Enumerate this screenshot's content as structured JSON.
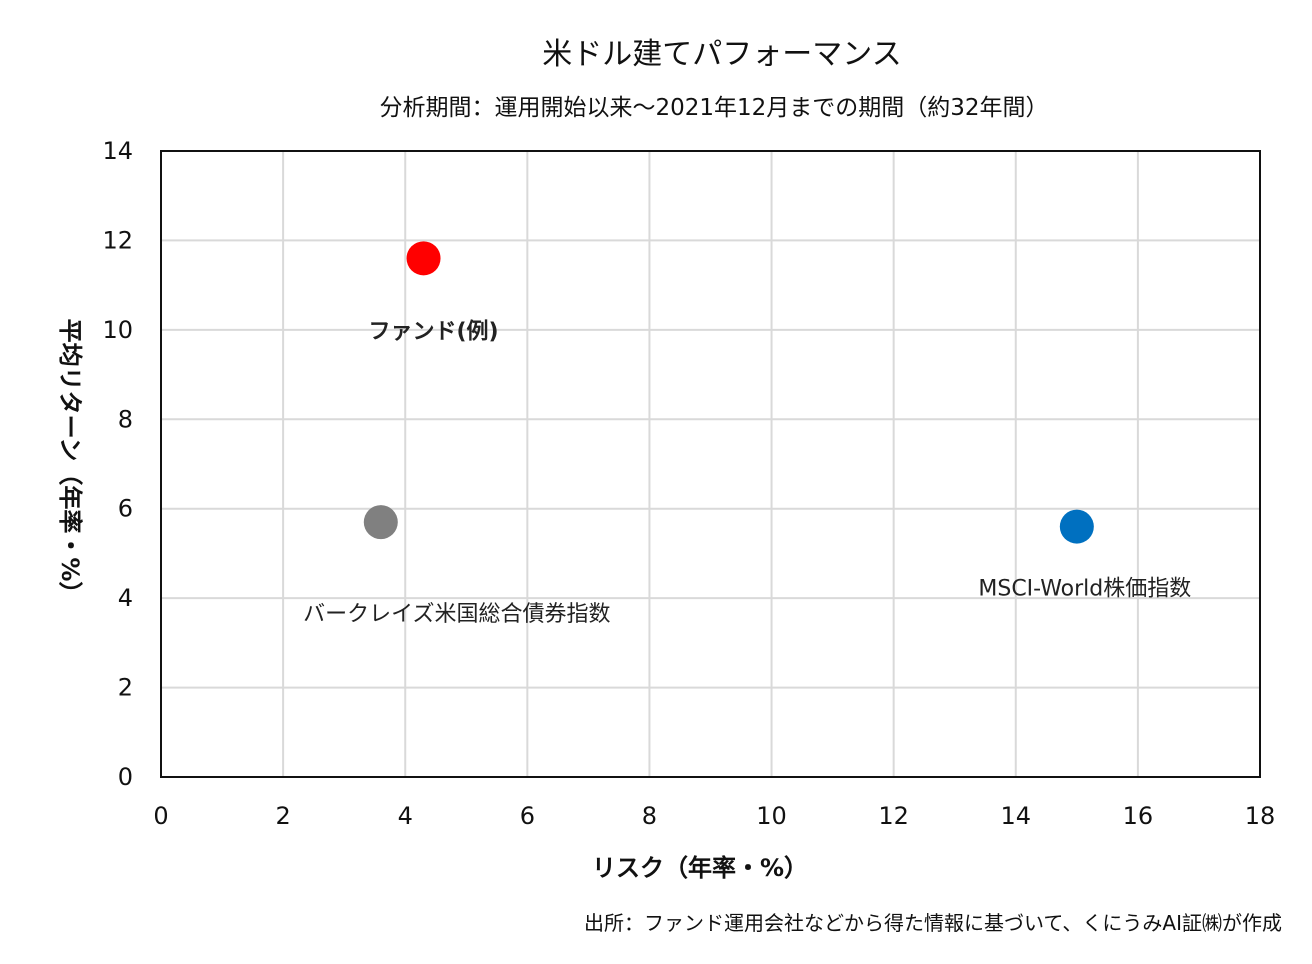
{
  "chart_data": {
    "type": "scatter",
    "title": "米ドル建てパフォーマンス",
    "subtitle": "分析期間：運用開始以来～2021年12月までの期間（約32年間）",
    "xlabel": "リスク（年率・%）",
    "ylabel": "平均リターン（年率・%）",
    "xlim": [
      0,
      18
    ],
    "ylim": [
      0,
      14
    ],
    "xticks": [
      0,
      2,
      4,
      6,
      8,
      10,
      12,
      14,
      16,
      18
    ],
    "yticks": [
      0,
      2,
      4,
      6,
      8,
      10,
      12,
      14
    ],
    "grid": true,
    "points": [
      {
        "name": "ファンド(例)",
        "x": 4.3,
        "y": 11.6,
        "color": "#ff0000",
        "label_color": "#ff0000",
        "label_bold": true
      },
      {
        "name": "バークレイズ米国総合債券指数",
        "x": 3.6,
        "y": 5.7,
        "color": "#808080",
        "label_color": "#222222",
        "label_bold": false
      },
      {
        "name": "MSCI-World株価指数",
        "x": 15.0,
        "y": 5.6,
        "color": "#0070c0",
        "label_color": "#222222",
        "label_bold": false
      }
    ],
    "source": "出所：ファンド運用会社などから得た情報に基づいて、くにうみAI証㈱が作成"
  }
}
